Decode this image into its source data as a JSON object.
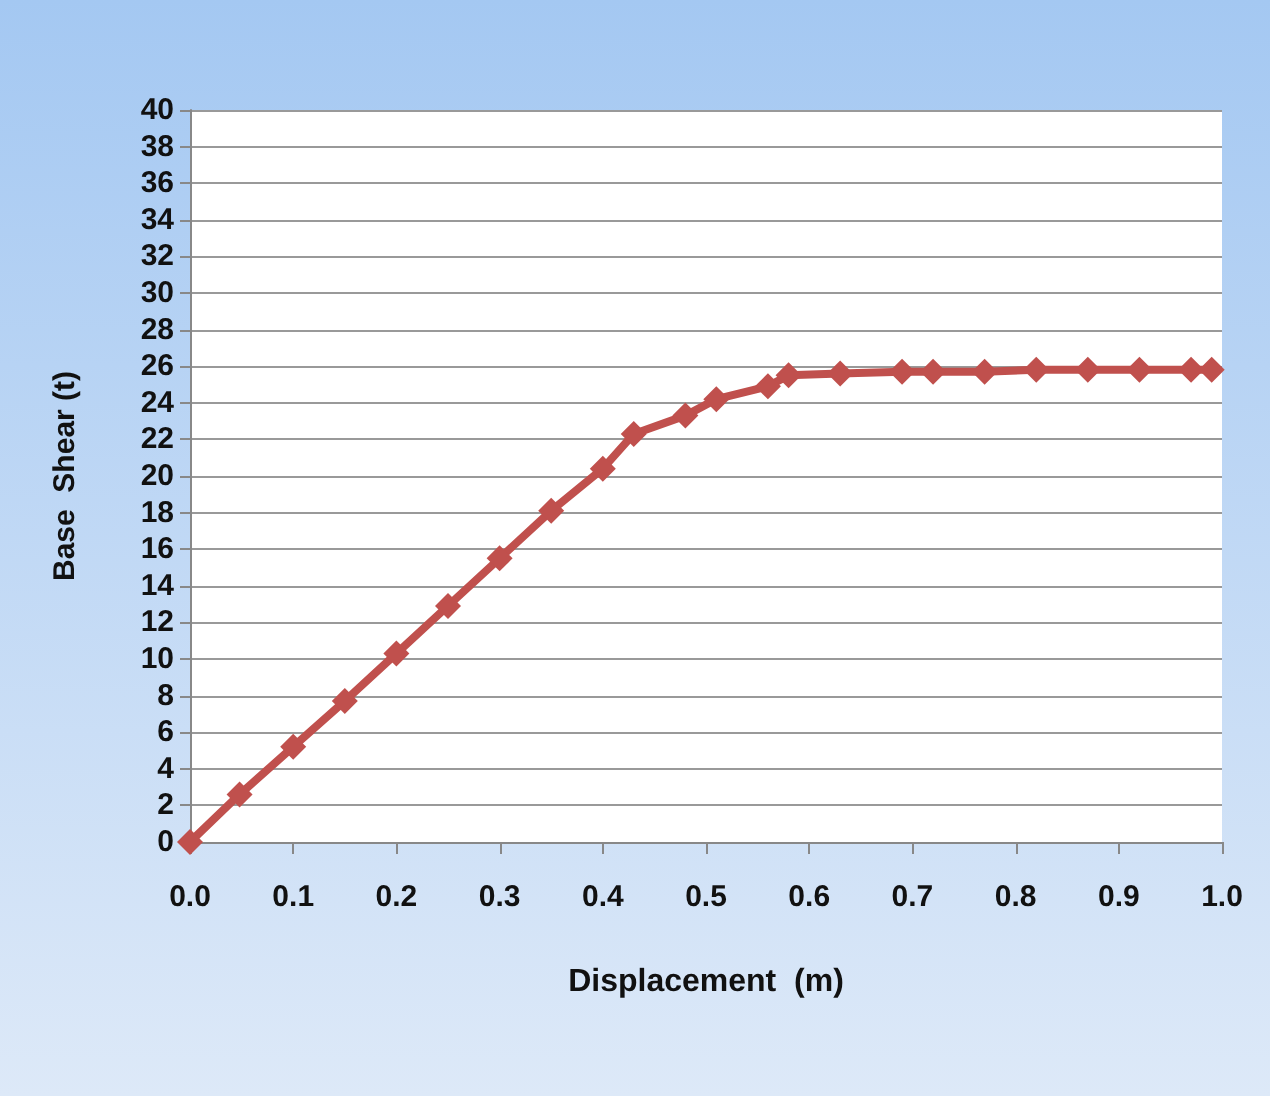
{
  "chart_data": {
    "type": "line",
    "xlabel": "Displacement  (m)",
    "ylabel": "Base  Shear (t)",
    "x": [
      0,
      0.048,
      0.1,
      0.15,
      0.2,
      0.25,
      0.3,
      0.35,
      0.4,
      0.43,
      0.48,
      0.51,
      0.56,
      0.58,
      0.63,
      0.69,
      0.72,
      0.77,
      0.82,
      0.87,
      0.92,
      0.97,
      0.99
    ],
    "series": [
      {
        "color": "#c0504d",
        "values": [
          0,
          2.6,
          5.2,
          7.7,
          10.3,
          12.9,
          15.5,
          18.1,
          20.4,
          22.3,
          23.3,
          24.2,
          24.9,
          25.5,
          25.6,
          25.7,
          25.7,
          25.7,
          25.8,
          25.8,
          25.8,
          25.8,
          25.8
        ]
      }
    ],
    "xlim": [
      0,
      1
    ],
    "xticks": [
      {
        "value": 0,
        "label": "0.0"
      },
      {
        "value": 0.1,
        "label": "0.1"
      },
      {
        "value": 0.2,
        "label": "0.2"
      },
      {
        "value": 0.3,
        "label": "0.3"
      },
      {
        "value": 0.4,
        "label": "0.4"
      },
      {
        "value": 0.5,
        "label": "0.5"
      },
      {
        "value": 0.6,
        "label": "0.6"
      },
      {
        "value": 0.7,
        "label": "0.7"
      },
      {
        "value": 0.8,
        "label": "0.8"
      },
      {
        "value": 0.9,
        "label": "0.9"
      },
      {
        "value": 1,
        "label": "1.0"
      }
    ],
    "ylim": [
      0,
      40
    ],
    "yticks": [
      0,
      2,
      4,
      6,
      8,
      10,
      12,
      14,
      16,
      18,
      20,
      22,
      24,
      26,
      28,
      30,
      32,
      34,
      36,
      38,
      40
    ],
    "grid": "y",
    "marker": "diamond",
    "line_style": "solid"
  }
}
